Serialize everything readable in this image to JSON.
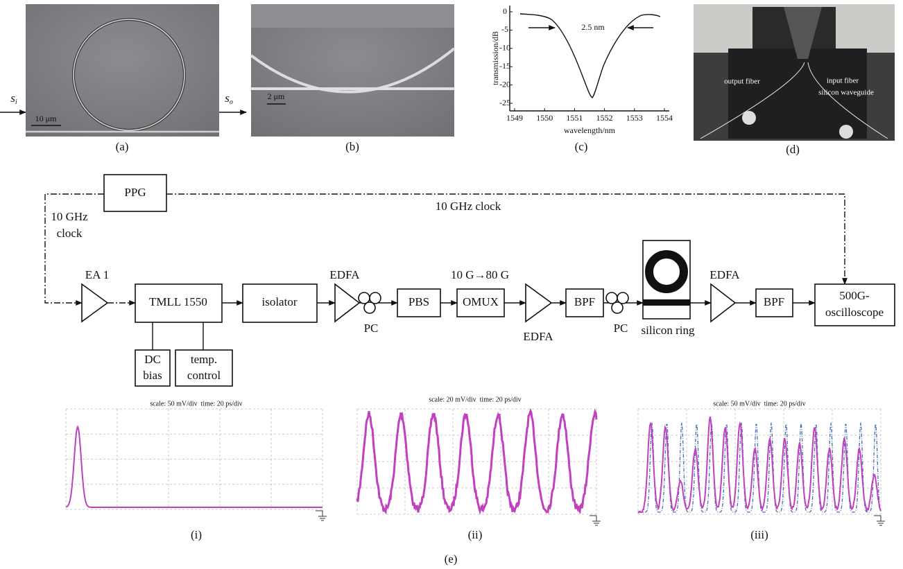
{
  "panel_a": {
    "input": {
      "base": "s",
      "sub": "i"
    },
    "output": {
      "base": "s",
      "sub": "o"
    },
    "scale_bar": "10 μm",
    "label": "(a)"
  },
  "panel_b": {
    "scale_bar": "2 μm",
    "label": "(b)"
  },
  "panel_c": {
    "y_label": "transmission/dB",
    "x_label": "wavelength/nm",
    "annotation": "2.5 nm",
    "x_ticks": [
      1549,
      1550,
      1551,
      1552,
      1553,
      1554
    ],
    "y_ticks": [
      0,
      -5,
      -10,
      -15,
      -20,
      -25
    ],
    "label": "(c)"
  },
  "panel_d": {
    "output_fiber": "output fiber",
    "input_fiber": "input fiber",
    "waveguide": "silicon waveguide",
    "label": "(d)"
  },
  "setup": {
    "ppg": "PPG",
    "clock_top": "10 GHz clock",
    "clock_left": [
      "10 GHz",
      "clock"
    ],
    "ea": "EA 1",
    "tmll": "TMLL 1550",
    "dc_bias": [
      "DC",
      "bias"
    ],
    "temp_control": [
      "temp.",
      "control"
    ],
    "isolator": "isolator",
    "edfa_1": "EDFA",
    "pc_1": "PC",
    "pbs": "PBS",
    "mux_rate": "10 G→80 G",
    "omux": "OMUX",
    "edfa_2": "EDFA",
    "bpf_1": "BPF",
    "pc_2": "PC",
    "ring": "silicon ring",
    "edfa_3": "EDFA",
    "bpf_2": "BPF",
    "oscilloscope": [
      "500G-",
      "oscilloscope"
    ]
  },
  "traces": [
    {
      "caption": "scale: 50 mV/div  time: 20 ps/div",
      "label": "(i)"
    },
    {
      "caption": "scale: 20 mV/div  time: 20 ps/div",
      "label": "(ii)"
    },
    {
      "caption": "scale: 50 mV/div  time: 20 ps/div",
      "label": "(iii)"
    }
  ],
  "label": "(e)"
}
